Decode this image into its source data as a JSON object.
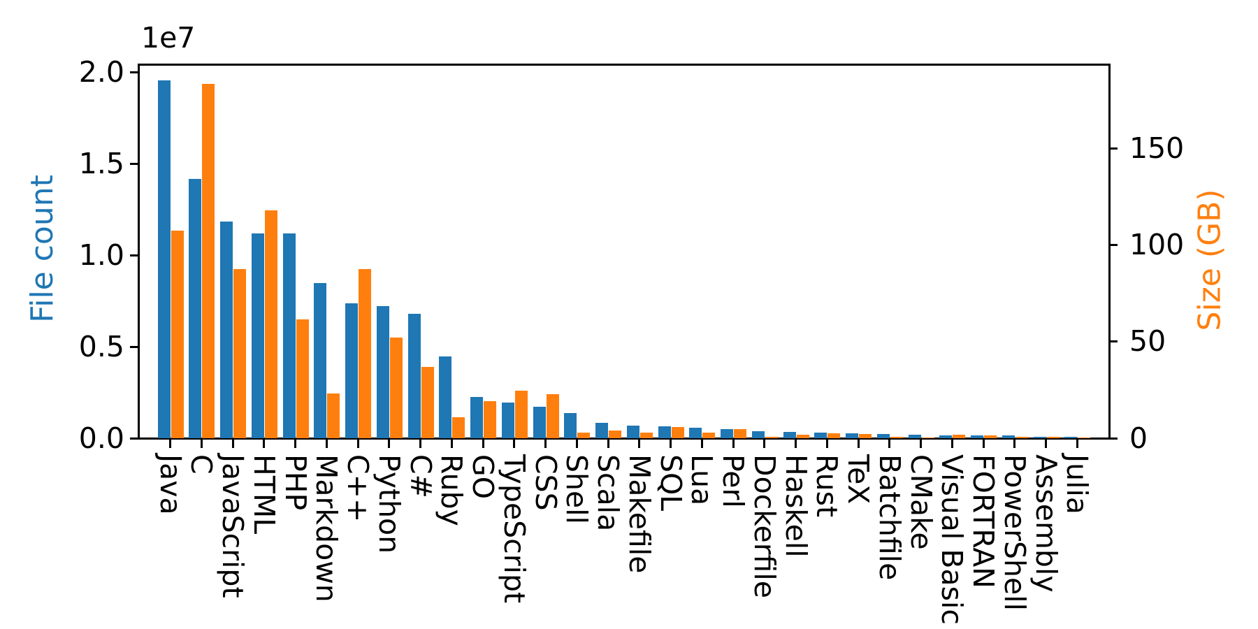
{
  "chart_data": {
    "type": "bar",
    "title": "",
    "categories": [
      "Java",
      "C",
      "JavaScript",
      "HTML",
      "PHP",
      "Markdown",
      "C++",
      "Python",
      "C#",
      "Ruby",
      "GO",
      "TypeScript",
      "CSS",
      "Shell",
      "Scala",
      "Makefile",
      "SQL",
      "Lua",
      "Perl",
      "Dockerfile",
      "Haskell",
      "Rust",
      "TeX",
      "Batchfile",
      "CMake",
      "Visual Basic",
      "FORTRAN",
      "PowerShell",
      "Assembly",
      "Julia"
    ],
    "series": [
      {
        "name": "File count",
        "axis": "left",
        "color": "#1f77b4",
        "values": [
          19548190,
          14143113,
          11839883,
          11178557,
          11177610,
          8464626,
          7380520,
          7226626,
          6811652,
          4473331,
          2265436,
          1940406,
          1734406,
          1385648,
          835755,
          679430,
          656671,
          578554,
          497949,
          366505,
          340623,
          322431,
          251015,
          236945,
          175282,
          155652,
          142038,
          136846,
          82905,
          58317
        ]
      },
      {
        "name": "Size (GB)",
        "axis": "right",
        "color": "#ff7f0e",
        "values": [
          107.7,
          183.83,
          87.82,
          118.12,
          61.41,
          23.09,
          87.73,
          52.03,
          36.83,
          10.95,
          19.28,
          24.59,
          22.67,
          3.01,
          3.87,
          2.92,
          5.67,
          2.81,
          4.7,
          0.71,
          1.85,
          2.68,
          2.15,
          0.7,
          0.54,
          1.91,
          1.62,
          0.69,
          0.78,
          0.29
        ]
      }
    ],
    "left_axis": {
      "label": "File count",
      "color": "#1f77b4",
      "offset_text": "1e7",
      "tick_labels": [
        "0.0",
        "0.5",
        "1.0",
        "1.5",
        "2.0"
      ],
      "tick_values": [
        0,
        5000000,
        10000000,
        15000000,
        20000000
      ],
      "range_max": 20420000
    },
    "right_axis": {
      "label": "Size (GB)",
      "color": "#ff7f0e",
      "tick_labels": [
        "0",
        "50",
        "100",
        "150"
      ],
      "tick_values": [
        0,
        50,
        100,
        150
      ],
      "range_max": 193.8
    },
    "grid": false,
    "legend": "none",
    "background": "#ffffff",
    "xtick_rotation_deg": 90
  }
}
